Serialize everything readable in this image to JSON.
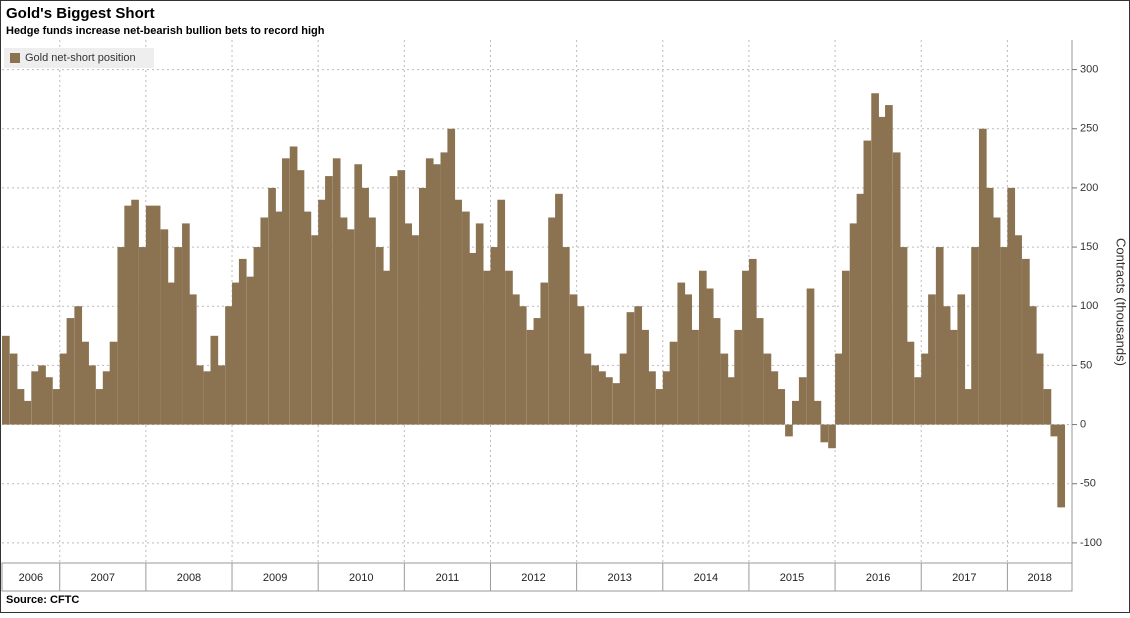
{
  "chart_data": {
    "type": "bar",
    "title": "Gold's Biggest Short",
    "subtitle": "Hedge funds increase net-bearish bullion bets to record high",
    "y_label": "Contracts (thousands)",
    "source": "Source: CFTC",
    "x": [
      2006.33,
      2006.42,
      2006.5,
      2006.58,
      2006.67,
      2006.75,
      2006.83,
      2006.92,
      2007,
      2007.08,
      2007.17,
      2007.25,
      2007.33,
      2007.42,
      2007.5,
      2007.58,
      2007.67,
      2007.75,
      2007.83,
      2007.92,
      2008,
      2008.08,
      2008.17,
      2008.25,
      2008.33,
      2008.42,
      2008.5,
      2008.58,
      2008.67,
      2008.75,
      2008.83,
      2008.92,
      2009,
      2009.08,
      2009.17,
      2009.25,
      2009.33,
      2009.42,
      2009.5,
      2009.58,
      2009.67,
      2009.75,
      2009.83,
      2009.92,
      2010,
      2010.08,
      2010.17,
      2010.25,
      2010.33,
      2010.42,
      2010.5,
      2010.58,
      2010.67,
      2010.75,
      2010.83,
      2010.92,
      2011,
      2011.08,
      2011.17,
      2011.25,
      2011.33,
      2011.42,
      2011.5,
      2011.58,
      2011.67,
      2011.75,
      2011.83,
      2011.92,
      2012,
      2012.08,
      2012.17,
      2012.25,
      2012.33,
      2012.42,
      2012.5,
      2012.58,
      2012.67,
      2012.75,
      2012.83,
      2012.92,
      2013,
      2013.08,
      2013.17,
      2013.25,
      2013.33,
      2013.42,
      2013.5,
      2013.58,
      2013.67,
      2013.75,
      2013.83,
      2013.92,
      2014,
      2014.08,
      2014.17,
      2014.25,
      2014.33,
      2014.42,
      2014.5,
      2014.58,
      2014.67,
      2014.75,
      2014.83,
      2014.92,
      2015,
      2015.08,
      2015.17,
      2015.25,
      2015.33,
      2015.42,
      2015.5,
      2015.58,
      2015.67,
      2015.75,
      2015.83,
      2015.92,
      2016,
      2016.08,
      2016.17,
      2016.25,
      2016.33,
      2016.42,
      2016.5,
      2016.58,
      2016.67,
      2016.75,
      2016.83,
      2016.92,
      2017,
      2017.08,
      2017.17,
      2017.25,
      2017.33,
      2017.42,
      2017.5,
      2017.58,
      2017.67,
      2017.75,
      2017.83,
      2017.92,
      2018,
      2018.08,
      2018.17,
      2018.25,
      2018.33,
      2018.42,
      2018.5,
      2018.58
    ],
    "series": [
      {
        "name": "Gold net-short position",
        "color": "#8b7352",
        "values": [
          75,
          60,
          30,
          20,
          45,
          50,
          40,
          30,
          60,
          90,
          100,
          70,
          50,
          30,
          45,
          70,
          150,
          185,
          190,
          150,
          185,
          185,
          165,
          120,
          150,
          170,
          110,
          50,
          45,
          75,
          50,
          100,
          120,
          140,
          125,
          150,
          175,
          200,
          180,
          225,
          235,
          215,
          180,
          160,
          190,
          210,
          225,
          175,
          165,
          220,
          200,
          175,
          150,
          130,
          210,
          215,
          170,
          160,
          200,
          225,
          220,
          230,
          250,
          190,
          180,
          145,
          170,
          130,
          150,
          190,
          130,
          110,
          100,
          80,
          90,
          120,
          175,
          195,
          150,
          110,
          100,
          60,
          50,
          45,
          40,
          35,
          60,
          95,
          100,
          80,
          45,
          30,
          45,
          70,
          120,
          110,
          80,
          130,
          115,
          90,
          60,
          40,
          80,
          130,
          140,
          90,
          60,
          45,
          30,
          -10,
          20,
          40,
          115,
          20,
          -15,
          -20,
          60,
          130,
          170,
          195,
          240,
          280,
          260,
          270,
          230,
          150,
          70,
          40,
          60,
          110,
          150,
          100,
          80,
          110,
          30,
          150,
          250,
          200,
          175,
          150,
          200,
          160,
          140,
          100,
          60,
          30,
          -10,
          -70
        ]
      }
    ],
    "xlim": [
      2006.33,
      2018.75
    ],
    "xticks": [
      {
        "value": 2006,
        "label": "2006"
      },
      {
        "value": 2007,
        "label": "2007"
      },
      {
        "value": 2008,
        "label": "2008"
      },
      {
        "value": 2009,
        "label": "2009"
      },
      {
        "value": 2010,
        "label": "2010"
      },
      {
        "value": 2011,
        "label": "2011"
      },
      {
        "value": 2012,
        "label": "2012"
      },
      {
        "value": 2013,
        "label": "2013"
      },
      {
        "value": 2014,
        "label": "2014"
      },
      {
        "value": 2015,
        "label": "2015"
      },
      {
        "value": 2016,
        "label": "2016"
      },
      {
        "value": 2017,
        "label": "2017"
      },
      {
        "value": 2018,
        "label": "2018"
      }
    ],
    "ylim": [
      -117,
      325
    ],
    "yticks": [
      -100,
      -50,
      0,
      50,
      100,
      150,
      200,
      250,
      300
    ],
    "grid": true,
    "legend": "top-left"
  }
}
